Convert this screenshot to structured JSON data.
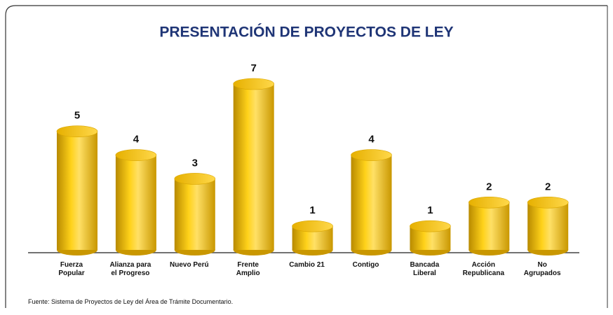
{
  "chart_data": {
    "type": "bar",
    "title": "PRESENTACIÓN DE PROYECTOS DE LEY",
    "categories": [
      "Fuerza\nPopular",
      "Alianza para\nel Progreso",
      "Nuevo Perú",
      "Frente\nAmplio",
      "Cambio 21",
      "Contigo",
      "Bancada\nLiberal",
      "Acción\nRepublicana",
      "No\nAgrupados"
    ],
    "values": [
      5,
      4,
      3,
      7,
      1,
      4,
      1,
      2,
      2
    ],
    "color": "#f5c400",
    "source": "Fuente: Sistema de Proyectos de Ley del Área de Trámite Documentario."
  }
}
